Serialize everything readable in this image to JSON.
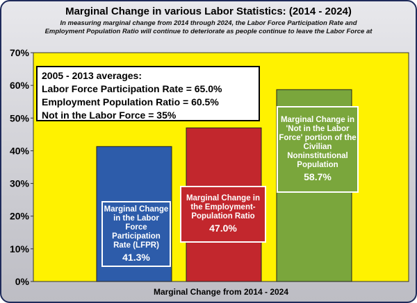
{
  "title": "Marginal Change in various Labor Statistics: (2014 - 2024)",
  "subtitle": "In measuring marginal change from 2014 through 2024, the Labor Force Participation Rate and Employment Population Ratio will continue to deteriorate as people continue to leave the Labor Force at",
  "legend": {
    "heading": "2005 - 2013 averages:",
    "lines": [
      "Labor Force Participation Rate = 65.0%",
      "Employment Population Ratio = 60.5%",
      "Not in the Labor Force = 35%"
    ]
  },
  "bar_labels": [
    {
      "text": "Marginal Change in the Labor Force Participation Rate (LFPR)",
      "value": "41.3%"
    },
    {
      "text": "Marginal Change in the Employment-Population Ratio",
      "value": "47.0%"
    },
    {
      "text": "Marginal Change in 'Not in the Labor Force' portion of the Civilian Noninstitutional Population",
      "value": "58.7%"
    }
  ],
  "colors": {
    "plot_bg": "#fff200",
    "bars": [
      "#2d5caa",
      "#c2272d",
      "#7aa63c"
    ]
  },
  "chart_data": {
    "type": "bar",
    "title": "Marginal Change in various Labor Statistics: (2014 - 2024)",
    "xlabel": "Marginal Change from 2014 - 2024",
    "ylabel": "",
    "categories": [
      "LFPR",
      "Employment-Population Ratio",
      "Not in the Labor Force"
    ],
    "values": [
      41.3,
      47.0,
      58.7
    ],
    "ylim": [
      0,
      70
    ],
    "yticks": [
      0,
      10,
      20,
      30,
      40,
      50,
      60,
      70
    ],
    "ytick_labels": [
      "0%",
      "10%",
      "20%",
      "30%",
      "40%",
      "50%",
      "60%",
      "70%"
    ],
    "grid": false
  }
}
